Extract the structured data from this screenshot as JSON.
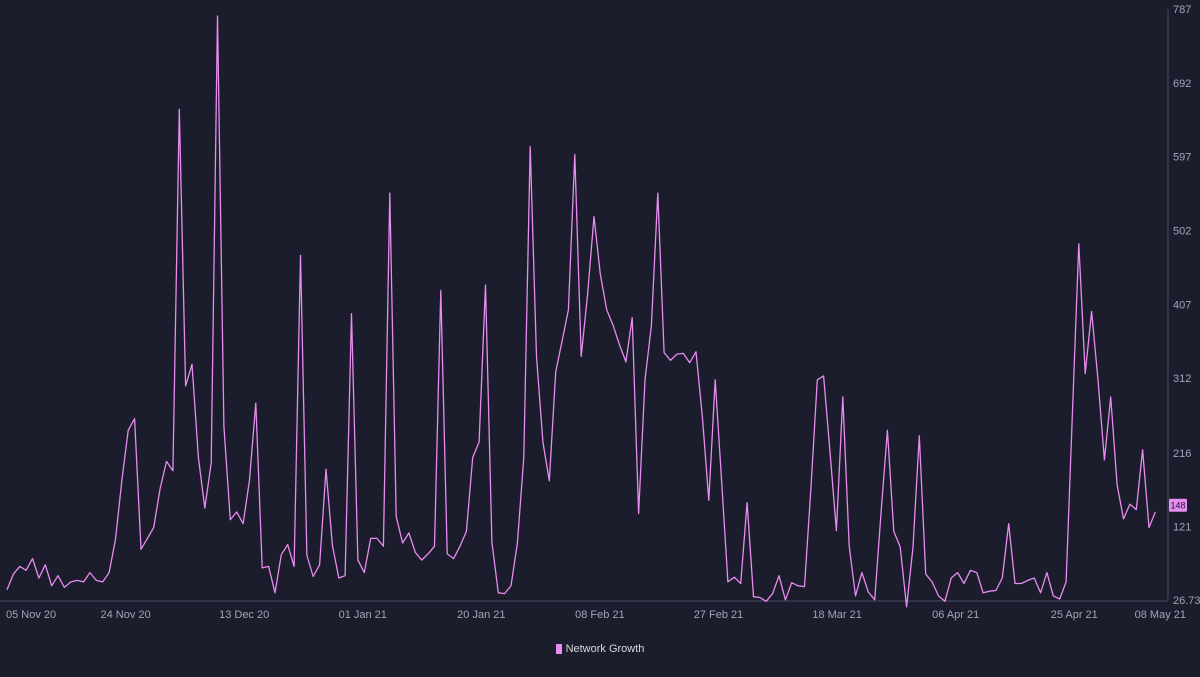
{
  "chart_data": {
    "type": "line",
    "title": "",
    "xlabel": "",
    "ylabel": "",
    "ylim": [
      26.73,
      787
    ],
    "y_ticks": [
      "787",
      "692",
      "597",
      "502",
      "407",
      "312",
      "216",
      "121",
      "26.73"
    ],
    "x_ticks": [
      "05 Nov 20",
      "24 Nov 20",
      "13 Dec 20",
      "01 Jan 21",
      "20 Jan 21",
      "08 Feb 21",
      "27 Feb 21",
      "18 Mar 21",
      "06 Apr 21",
      "25 Apr 21",
      "08 May 21"
    ],
    "x_start": "2020-11-05",
    "x_end": "2021-05-08",
    "current_value_label": "148",
    "grid": false,
    "legend_position": "bottom-center",
    "series": [
      {
        "name": "Network Growth",
        "color": "#e88cf0",
        "values": [
          40,
          60,
          70,
          65,
          80,
          55,
          72,
          45,
          58,
          43,
          50,
          52,
          50,
          62,
          52,
          50,
          62,
          105,
          180,
          245,
          260,
          92,
          106,
          120,
          170,
          205,
          193,
          658,
          302,
          330,
          210,
          145,
          203,
          778,
          250,
          130,
          140,
          125,
          180,
          280,
          68,
          70,
          36,
          85,
          98,
          70,
          470,
          84,
          57,
          72,
          195,
          97,
          55,
          58,
          395,
          78,
          62,
          106,
          106,
          96,
          550,
          134,
          100,
          113,
          88,
          78,
          86,
          96,
          425,
          86,
          80,
          96,
          115,
          210,
          230,
          432,
          101,
          36,
          35,
          45,
          100,
          210,
          610,
          340,
          230,
          180,
          320,
          360,
          400,
          600,
          340,
          420,
          520,
          446,
          400,
          380,
          355,
          333,
          390,
          138,
          310,
          380,
          550,
          345,
          335,
          343,
          344,
          332,
          346,
          262,
          155,
          310,
          180,
          50,
          56,
          48,
          152,
          31,
          30,
          25,
          35,
          58,
          27,
          49,
          45,
          44,
          170,
          310,
          315,
          217,
          116,
          288,
          96,
          32,
          62,
          37,
          27,
          140,
          245,
          115,
          95,
          18,
          95,
          238,
          60,
          50,
          32,
          25,
          55,
          62,
          48,
          65,
          62,
          36,
          38,
          39,
          55,
          125,
          48,
          48,
          52,
          55,
          36,
          62,
          32,
          28,
          50,
          270,
          485,
          318,
          398,
          310,
          207,
          288,
          175,
          131,
          150,
          143,
          220,
          120,
          140
        ]
      }
    ]
  }
}
